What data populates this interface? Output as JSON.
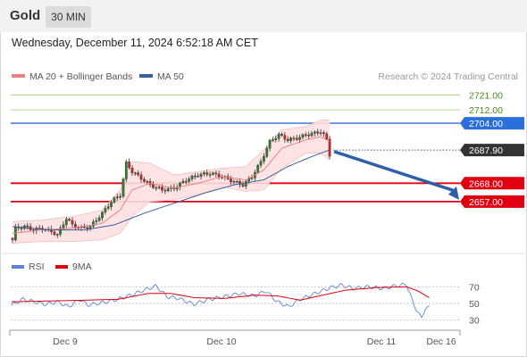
{
  "header": {
    "symbol": "Gold",
    "timeframe": "30 MIN"
  },
  "datetime": "Wednesday, December 11, 2024 6:52:18 AM CET",
  "legend": {
    "ma20_label": "MA 20 + Bollinger Bands",
    "ma50_label": "MA 50",
    "copyright": "Research © 2024 Trading Central"
  },
  "colors": {
    "ma20": "#f08080",
    "bollinger_fill": "#fde0e0",
    "ma50": "#3a5fa0",
    "resistance": "#2a6fdb",
    "target_lines": "#9ccc65",
    "support": "#e0000f",
    "current_price_box": "#333333",
    "rsi": "#5b84d8",
    "rsi_ma": "#e0000f",
    "arrow": "#2f5fa7",
    "candle_up": "#2e7d32",
    "candle_down": "#c62828"
  },
  "chart_data": [
    {
      "type": "candlestick",
      "title": "",
      "timeframe": "30 MIN",
      "x_tick_labels": [
        "Dec 9",
        "Dec 10",
        "Dec 11",
        "Dec 16"
      ],
      "ylim": [
        2628,
        2726
      ],
      "price_levels": [
        {
          "value": 2721.0,
          "label": "2721.00",
          "kind": "target"
        },
        {
          "value": 2712.0,
          "label": "2712.00",
          "kind": "target"
        },
        {
          "value": 2704.0,
          "label": "2704.00",
          "kind": "resistance"
        },
        {
          "value": 2687.9,
          "label": "2687.90",
          "kind": "current"
        },
        {
          "value": 2668.0,
          "label": "2668.00",
          "kind": "support"
        },
        {
          "value": 2657.0,
          "label": "2657.00",
          "kind": "support"
        }
      ],
      "forecast_arrow": {
        "from": 2687.0,
        "to": 2657.0
      },
      "anchors": [
        [
          0,
          2634
        ],
        [
          1,
          2641
        ],
        [
          4,
          2642
        ],
        [
          7,
          2640
        ],
        [
          10,
          2641
        ],
        [
          13,
          2639
        ],
        [
          15,
          2637
        ],
        [
          18,
          2647
        ],
        [
          20,
          2643
        ],
        [
          23,
          2641
        ],
        [
          26,
          2642
        ],
        [
          30,
          2650
        ],
        [
          33,
          2657
        ],
        [
          36,
          2661
        ],
        [
          38,
          2680
        ],
        [
          40,
          2675
        ],
        [
          43,
          2671
        ],
        [
          46,
          2667
        ],
        [
          50,
          2664
        ],
        [
          54,
          2665
        ],
        [
          58,
          2670
        ],
        [
          62,
          2673
        ],
        [
          66,
          2674
        ],
        [
          70,
          2672
        ],
        [
          74,
          2669
        ],
        [
          77,
          2667
        ],
        [
          80,
          2672
        ],
        [
          83,
          2681
        ],
        [
          86,
          2693
        ],
        [
          89,
          2697
        ],
        [
          92,
          2694
        ],
        [
          95,
          2695
        ],
        [
          98,
          2697
        ],
        [
          101,
          2698
        ],
        [
          103,
          2699
        ],
        [
          104,
          2697
        ],
        [
          105,
          2694
        ],
        [
          106,
          2685
        ]
      ],
      "candle_count": 107,
      "ma20": [
        [
          0,
          2638
        ],
        [
          10,
          2640
        ],
        [
          20,
          2641
        ],
        [
          30,
          2644
        ],
        [
          36,
          2652
        ],
        [
          40,
          2664
        ],
        [
          46,
          2668
        ],
        [
          54,
          2665
        ],
        [
          62,
          2668
        ],
        [
          70,
          2672
        ],
        [
          78,
          2670
        ],
        [
          84,
          2676
        ],
        [
          90,
          2689
        ],
        [
          98,
          2694
        ],
        [
          103,
          2696
        ],
        [
          106,
          2693
        ]
      ],
      "bollinger_upper": [
        [
          0,
          2645
        ],
        [
          10,
          2646
        ],
        [
          20,
          2648
        ],
        [
          30,
          2652
        ],
        [
          36,
          2664
        ],
        [
          40,
          2681
        ],
        [
          46,
          2680
        ],
        [
          54,
          2673
        ],
        [
          62,
          2675
        ],
        [
          70,
          2677
        ],
        [
          78,
          2678
        ],
        [
          84,
          2688
        ],
        [
          90,
          2700
        ],
        [
          98,
          2702
        ],
        [
          103,
          2706
        ],
        [
          106,
          2706
        ]
      ],
      "bollinger_lower": [
        [
          0,
          2632
        ],
        [
          10,
          2633
        ],
        [
          20,
          2633
        ],
        [
          30,
          2634
        ],
        [
          36,
          2638
        ],
        [
          40,
          2648
        ],
        [
          46,
          2657
        ],
        [
          54,
          2658
        ],
        [
          62,
          2661
        ],
        [
          70,
          2666
        ],
        [
          78,
          2663
        ],
        [
          84,
          2664
        ],
        [
          90,
          2677
        ],
        [
          98,
          2686
        ],
        [
          103,
          2686
        ],
        [
          106,
          2682
        ]
      ],
      "ma50": [
        [
          0,
          2642
        ],
        [
          12,
          2640
        ],
        [
          24,
          2640
        ],
        [
          34,
          2643
        ],
        [
          44,
          2650
        ],
        [
          54,
          2656
        ],
        [
          64,
          2662
        ],
        [
          74,
          2667
        ],
        [
          84,
          2670
        ],
        [
          92,
          2678
        ],
        [
          100,
          2684
        ],
        [
          106,
          2688
        ]
      ]
    },
    {
      "type": "line",
      "legend": [
        "RSI",
        "9MA"
      ],
      "y_tick_labels": [
        "70",
        "50",
        "30"
      ],
      "y_ticks": [
        70,
        50,
        30
      ],
      "ylim": [
        20,
        80
      ],
      "series": [
        {
          "name": "RSI",
          "values": [
            [
              0,
              48
            ],
            [
              3,
              55
            ],
            [
              6,
              52
            ],
            [
              9,
              49
            ],
            [
              12,
              52
            ],
            [
              15,
              46
            ],
            [
              18,
              55
            ],
            [
              20,
              48
            ],
            [
              24,
              51
            ],
            [
              28,
              55
            ],
            [
              32,
              61
            ],
            [
              35,
              66
            ],
            [
              38,
              71
            ],
            [
              41,
              58
            ],
            [
              44,
              56
            ],
            [
              48,
              49
            ],
            [
              52,
              55
            ],
            [
              56,
              58
            ],
            [
              60,
              62
            ],
            [
              64,
              59
            ],
            [
              67,
              65
            ],
            [
              70,
              52
            ],
            [
              73,
              46
            ],
            [
              76,
              55
            ],
            [
              80,
              62
            ],
            [
              84,
              69
            ],
            [
              87,
              72
            ],
            [
              90,
              68
            ],
            [
              94,
              70
            ],
            [
              98,
              68
            ],
            [
              101,
              71
            ],
            [
              104,
              73
            ],
            [
              106,
              48
            ],
            [
              108,
              32
            ],
            [
              109,
              45
            ],
            [
              110,
              45
            ]
          ]
        },
        {
          "name": "9MA",
          "values": [
            [
              0,
              52
            ],
            [
              10,
              53
            ],
            [
              20,
              54
            ],
            [
              28,
              55
            ],
            [
              36,
              62
            ],
            [
              42,
              62
            ],
            [
              48,
              57
            ],
            [
              56,
              56
            ],
            [
              64,
              60
            ],
            [
              70,
              59
            ],
            [
              76,
              54
            ],
            [
              82,
              60
            ],
            [
              88,
              66
            ],
            [
              96,
              69
            ],
            [
              104,
              70
            ],
            [
              107,
              65
            ],
            [
              110,
              57
            ]
          ]
        }
      ]
    }
  ]
}
